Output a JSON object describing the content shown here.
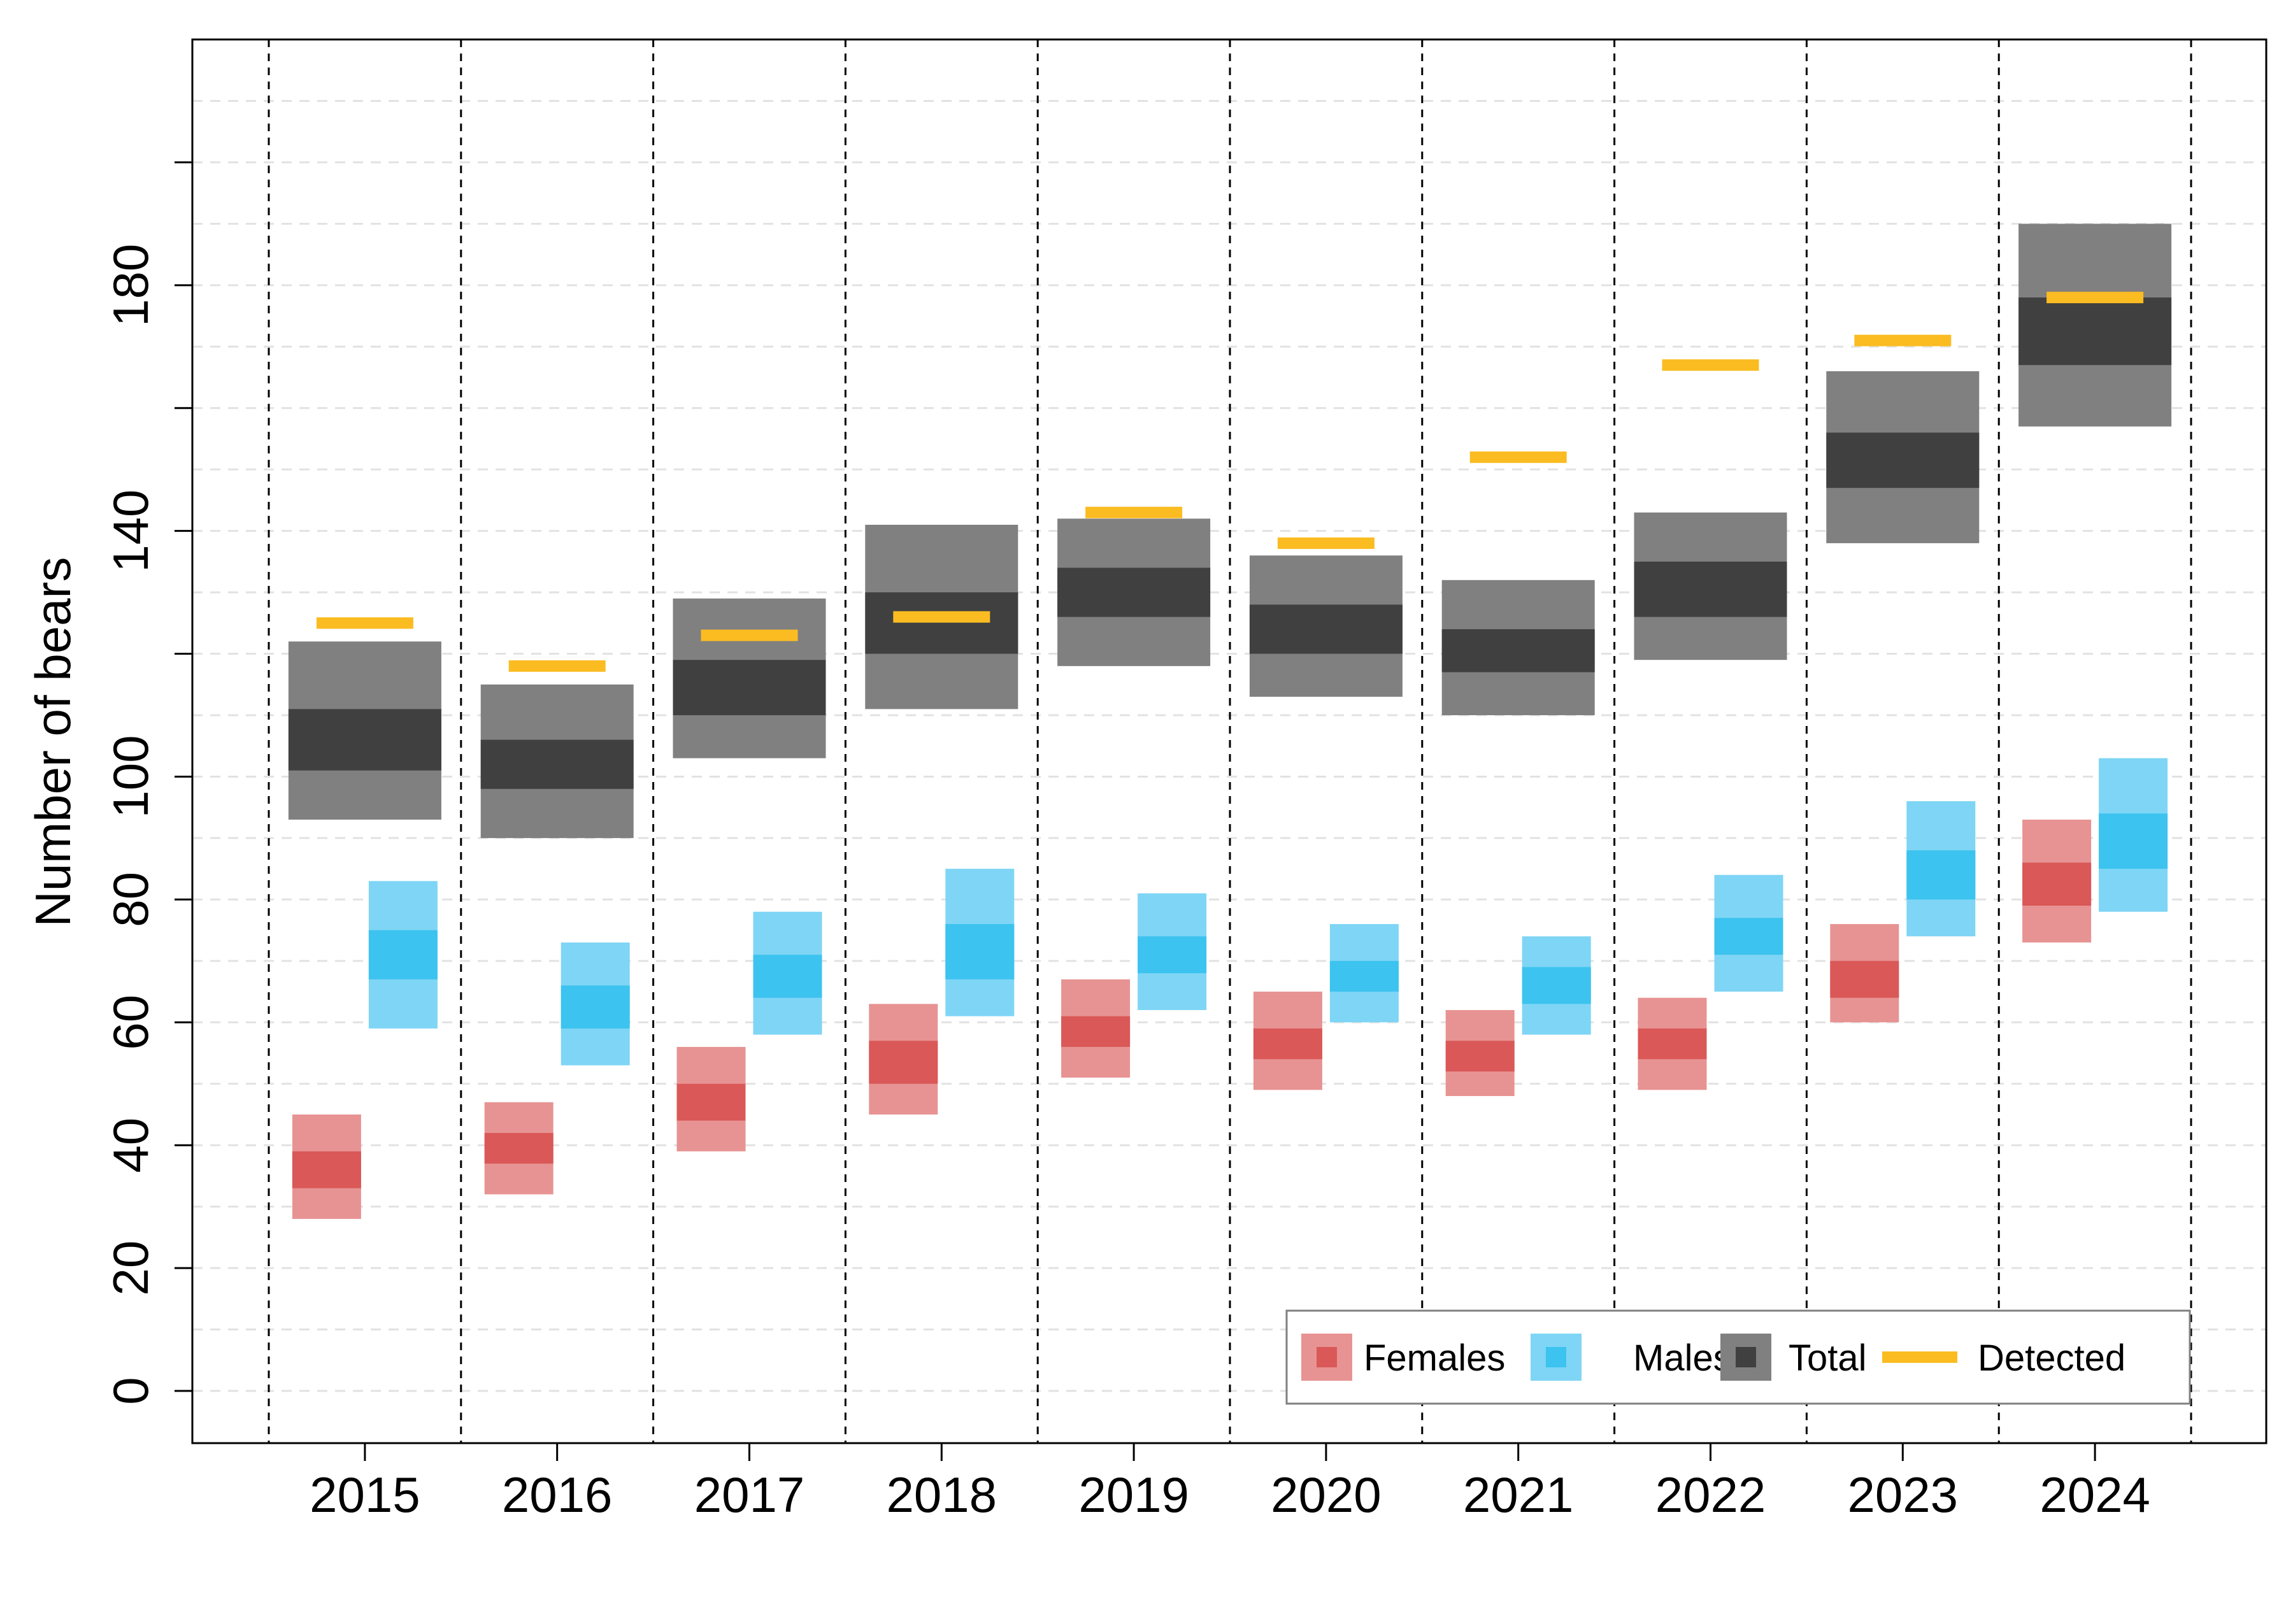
{
  "chart_data": {
    "type": "bar",
    "title": "",
    "xlabel": "",
    "ylabel": "Number of bears",
    "ylim": [
      -8.5,
      220
    ],
    "y_ticks": [
      0,
      20,
      40,
      60,
      80,
      100,
      120,
      140,
      160,
      180,
      200
    ],
    "y_tick_labels": [
      "0",
      "20",
      "40",
      "60",
      "80",
      "100",
      "",
      "140",
      "",
      "180",
      ""
    ],
    "categories": [
      "2015",
      "2016",
      "2017",
      "2018",
      "2019",
      "2020",
      "2021",
      "2022",
      "2023",
      "2024"
    ],
    "grid": "horizontal dashed, every 10",
    "legend_position": "bottom-right",
    "series": [
      {
        "name": "Females",
        "colors": {
          "outer": "#e79393",
          "inner": "#da5858"
        },
        "outer_low": [
          28,
          32,
          39,
          45,
          51,
          49,
          48,
          49,
          60,
          73
        ],
        "inner_low": [
          33,
          37,
          44,
          50,
          56,
          54,
          52,
          54,
          64,
          79
        ],
        "inner_high": [
          39,
          42,
          50,
          57,
          61,
          59,
          57,
          59,
          70,
          86
        ],
        "outer_high": [
          45,
          47,
          56,
          63,
          67,
          65,
          62,
          64,
          76,
          93
        ]
      },
      {
        "name": "Males",
        "colors": {
          "outer": "#7fd5f5",
          "inner": "#3cc3ef"
        },
        "outer_low": [
          59,
          53,
          58,
          61,
          62,
          60,
          58,
          65,
          74,
          78
        ],
        "inner_low": [
          67,
          59,
          64,
          67,
          68,
          65,
          63,
          71,
          80,
          85
        ],
        "inner_high": [
          75,
          66,
          71,
          76,
          74,
          70,
          69,
          77,
          88,
          94
        ],
        "outer_high": [
          83,
          73,
          78,
          85,
          81,
          76,
          74,
          84,
          96,
          103
        ]
      },
      {
        "name": "Total",
        "colors": {
          "outer": "#808080",
          "inner": "#404040"
        },
        "outer_low": [
          93,
          90,
          103,
          111,
          118,
          113,
          110,
          119,
          138,
          157
        ],
        "inner_low": [
          101,
          98,
          110,
          120,
          126,
          120,
          117,
          126,
          147,
          167
        ],
        "inner_high": [
          111,
          106,
          119,
          130,
          134,
          128,
          124,
          135,
          156,
          178
        ],
        "outer_high": [
          122,
          115,
          129,
          141,
          142,
          136,
          132,
          143,
          166,
          190
        ]
      },
      {
        "name": "Detected",
        "colors": {
          "line": "#fbbc22"
        },
        "values": [
          125,
          118,
          123,
          126,
          143,
          138,
          152,
          167,
          171,
          178
        ]
      }
    ]
  }
}
